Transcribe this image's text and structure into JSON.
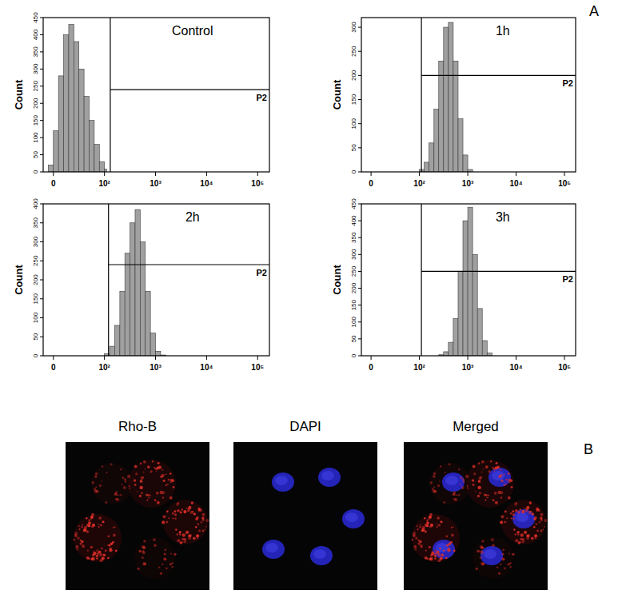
{
  "panel_labels": [
    "A",
    "B"
  ],
  "chart_data": [
    {
      "type": "histogram",
      "title": "Control",
      "ylabel": "Count",
      "log": "x",
      "color": "#a0a0a0",
      "bins": [
        -10,
        0,
        10,
        20,
        30,
        40,
        50,
        60,
        70,
        80,
        90,
        100,
        110
      ],
      "values": [
        20,
        120,
        280,
        400,
        430,
        380,
        300,
        220,
        150,
        80,
        30,
        8
      ],
      "xlim": [
        -20,
        170000
      ],
      "xticks": [
        0,
        {
          "value": 100,
          "label": "10²"
        },
        {
          "value": 1000,
          "label": "10³"
        },
        {
          "value": 10000,
          "label": "10⁴"
        },
        {
          "value": 100000,
          "label": "10⁵"
        }
      ],
      "ylim": [
        0,
        450
      ],
      "yticks": [
        0,
        50,
        100,
        150,
        200,
        250,
        300,
        350,
        400,
        450
      ],
      "gate": {
        "label": "P2",
        "x": 130,
        "y": 240
      }
    },
    {
      "type": "histogram",
      "title": "1h",
      "ylabel": "Count",
      "log": "x",
      "color": "#a0a0a0",
      "bins": [
        100,
        126,
        158,
        200,
        251,
        316,
        398,
        501,
        631,
        794,
        1000,
        1259
      ],
      "values": [
        5,
        20,
        60,
        130,
        230,
        300,
        310,
        230,
        110,
        35,
        5
      ],
      "xlim": [
        -20,
        170000
      ],
      "xticks": [
        0,
        {
          "value": 100,
          "label": "10²"
        },
        {
          "value": 1000,
          "label": "10³"
        },
        {
          "value": 10000,
          "label": "10⁴"
        },
        {
          "value": 100000,
          "label": "10⁵"
        }
      ],
      "ylim": [
        0,
        320
      ],
      "yticks": [
        0,
        50,
        100,
        150,
        200,
        250,
        300
      ],
      "gate": {
        "label": "P2",
        "x": 110,
        "y": 200
      }
    },
    {
      "type": "histogram",
      "title": "2h",
      "ylabel": "Count",
      "log": "x",
      "color": "#a0a0a0",
      "bins": [
        100,
        126,
        158,
        200,
        251,
        316,
        398,
        501,
        631,
        794,
        1000,
        1259,
        1585
      ],
      "values": [
        5,
        25,
        80,
        170,
        270,
        350,
        385,
        300,
        170,
        60,
        12,
        2
      ],
      "xlim": [
        -20,
        170000
      ],
      "xticks": [
        0,
        {
          "value": 100,
          "label": "10²"
        },
        {
          "value": 1000,
          "label": "10³"
        },
        {
          "value": 10000,
          "label": "10⁴"
        },
        {
          "value": 100000,
          "label": "10⁵"
        }
      ],
      "ylim": [
        0,
        400
      ],
      "yticks": [
        0,
        50,
        100,
        150,
        200,
        250,
        300,
        350,
        400
      ],
      "gate": {
        "label": "P2",
        "x": 120,
        "y": 240
      }
    },
    {
      "type": "histogram",
      "title": "3h",
      "ylabel": "Count",
      "log": "x",
      "color": "#a0a0a0",
      "bins": [
        251,
        316,
        398,
        501,
        631,
        794,
        1000,
        1259,
        1585,
        1995,
        2512,
        3162
      ],
      "values": [
        3,
        12,
        40,
        110,
        250,
        400,
        440,
        300,
        140,
        45,
        8
      ],
      "xlim": [
        -20,
        170000
      ],
      "xticks": [
        0,
        {
          "value": 100,
          "label": "10²"
        },
        {
          "value": 1000,
          "label": "10³"
        },
        {
          "value": 10000,
          "label": "10⁴"
        },
        {
          "value": 100000,
          "label": "10⁵"
        }
      ],
      "ylim": [
        0,
        450
      ],
      "yticks": [
        0,
        50,
        100,
        150,
        200,
        250,
        300,
        350,
        400,
        450
      ],
      "gate": {
        "label": "P2",
        "x": 110,
        "y": 250
      }
    }
  ],
  "images": {
    "titles": [
      "Rho-B",
      "DAPI",
      "Merged"
    ]
  }
}
